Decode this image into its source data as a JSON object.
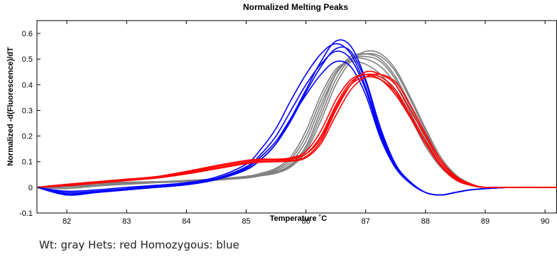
{
  "caption": "Wt:  gray Hets: red Homozygous: blue",
  "chart_data": {
    "type": "line",
    "title": "Normalized Melting Peaks",
    "xlabel": "Temperature ˚C",
    "ylabel": "Normalized -d(Fluorescence)/dT",
    "xlim": [
      81.5,
      90.2
    ],
    "ylim": [
      -0.1,
      0.65
    ],
    "xticks": [
      82,
      83,
      84,
      85,
      86,
      87,
      88,
      89,
      90
    ],
    "yticks": [
      -0.1,
      0,
      0.1,
      0.2,
      0.3,
      0.4,
      0.5,
      0.6
    ],
    "ytick_labels": [
      "-0.1",
      "0",
      "0.1",
      "0.2",
      "0.3",
      "0.4",
      "0.5",
      "0.6"
    ],
    "grid": false,
    "legend": "none",
    "x": [
      81.5,
      82.0,
      82.5,
      83.0,
      83.5,
      84.0,
      84.5,
      85.0,
      85.25,
      85.5,
      85.75,
      86.0,
      86.25,
      86.5,
      86.75,
      87.0,
      87.25,
      87.5,
      87.75,
      88.0,
      88.25,
      88.5,
      88.75,
      89.0,
      89.5,
      90.0,
      90.2
    ],
    "series": [
      {
        "group": "Wt",
        "color": "#808080",
        "values": [
          0.0,
          0.01,
          0.015,
          0.018,
          0.02,
          0.025,
          0.03,
          0.04,
          0.05,
          0.06,
          0.09,
          0.16,
          0.3,
          0.44,
          0.51,
          0.52,
          0.5,
          0.43,
          0.32,
          0.2,
          0.1,
          0.04,
          0.01,
          0.0,
          0.0,
          0.0,
          0.0
        ]
      },
      {
        "group": "Wt",
        "color": "#808080",
        "values": [
          0.0,
          0.005,
          0.01,
          0.015,
          0.02,
          0.025,
          0.03,
          0.04,
          0.05,
          0.07,
          0.11,
          0.2,
          0.34,
          0.45,
          0.5,
          0.5,
          0.47,
          0.4,
          0.29,
          0.18,
          0.09,
          0.03,
          0.01,
          0.0,
          0.0,
          0.0,
          0.0
        ]
      },
      {
        "group": "Wt",
        "color": "#808080",
        "values": [
          0.0,
          -0.005,
          0.005,
          0.012,
          0.018,
          0.022,
          0.028,
          0.036,
          0.045,
          0.055,
          0.08,
          0.14,
          0.26,
          0.4,
          0.49,
          0.53,
          0.52,
          0.46,
          0.35,
          0.23,
          0.12,
          0.05,
          0.015,
          0.0,
          0.0,
          0.0,
          0.0
        ]
      },
      {
        "group": "Wt",
        "color": "#808080",
        "values": [
          0.0,
          0.0,
          0.008,
          0.014,
          0.02,
          0.026,
          0.032,
          0.042,
          0.055,
          0.075,
          0.12,
          0.22,
          0.36,
          0.46,
          0.49,
          0.48,
          0.44,
          0.37,
          0.27,
          0.16,
          0.08,
          0.03,
          0.01,
          0.0,
          0.0,
          0.0,
          0.0
        ]
      },
      {
        "group": "Wt",
        "color": "#808080",
        "values": [
          0.0,
          0.012,
          0.018,
          0.02,
          0.022,
          0.026,
          0.03,
          0.038,
          0.046,
          0.058,
          0.085,
          0.15,
          0.28,
          0.42,
          0.5,
          0.52,
          0.51,
          0.45,
          0.34,
          0.22,
          0.11,
          0.045,
          0.012,
          0.0,
          0.0,
          0.0,
          0.0
        ]
      },
      {
        "group": "Wt",
        "color": "#808080",
        "values": [
          0.0,
          0.004,
          0.01,
          0.016,
          0.021,
          0.027,
          0.033,
          0.043,
          0.052,
          0.065,
          0.1,
          0.18,
          0.32,
          0.44,
          0.5,
          0.51,
          0.49,
          0.42,
          0.31,
          0.19,
          0.1,
          0.04,
          0.01,
          0.0,
          0.0,
          0.0,
          0.0
        ]
      },
      {
        "group": "Hets",
        "color": "#ff0000",
        "values": [
          0.0,
          0.01,
          0.02,
          0.03,
          0.04,
          0.06,
          0.08,
          0.1,
          0.105,
          0.105,
          0.11,
          0.13,
          0.2,
          0.32,
          0.41,
          0.44,
          0.43,
          0.38,
          0.28,
          0.18,
          0.09,
          0.035,
          0.01,
          0.0,
          0.0,
          0.0,
          0.0
        ]
      },
      {
        "group": "Hets",
        "color": "#ff0000",
        "values": [
          0.0,
          0.008,
          0.018,
          0.028,
          0.038,
          0.055,
          0.075,
          0.095,
          0.1,
          0.1,
          0.105,
          0.12,
          0.18,
          0.3,
          0.4,
          0.45,
          0.44,
          0.4,
          0.3,
          0.2,
          0.1,
          0.04,
          0.012,
          0.0,
          0.0,
          0.0,
          0.0
        ]
      },
      {
        "group": "Hets",
        "color": "#ff0000",
        "values": [
          0.0,
          0.012,
          0.022,
          0.032,
          0.042,
          0.062,
          0.085,
          0.105,
          0.11,
          0.11,
          0.115,
          0.14,
          0.22,
          0.34,
          0.42,
          0.44,
          0.42,
          0.36,
          0.27,
          0.17,
          0.085,
          0.03,
          0.008,
          0.0,
          0.0,
          0.0,
          0.0
        ]
      },
      {
        "group": "Hets",
        "color": "#ff0000",
        "values": [
          0.0,
          0.006,
          0.016,
          0.026,
          0.036,
          0.052,
          0.072,
          0.092,
          0.098,
          0.1,
          0.102,
          0.115,
          0.17,
          0.28,
          0.38,
          0.43,
          0.44,
          0.41,
          0.32,
          0.21,
          0.11,
          0.045,
          0.014,
          0.0,
          0.0,
          0.0,
          0.0
        ]
      },
      {
        "group": "Hets",
        "color": "#ff0000",
        "values": [
          0.0,
          0.01,
          0.02,
          0.03,
          0.04,
          0.058,
          0.08,
          0.1,
          0.106,
          0.108,
          0.112,
          0.13,
          0.19,
          0.31,
          0.4,
          0.43,
          0.42,
          0.37,
          0.28,
          0.18,
          0.09,
          0.035,
          0.01,
          0.0,
          0.0,
          0.0,
          0.0
        ]
      },
      {
        "group": "Homozygous",
        "color": "#0000ff",
        "values": [
          0.0,
          -0.03,
          -0.02,
          -0.01,
          0.0,
          0.01,
          0.03,
          0.07,
          0.11,
          0.17,
          0.27,
          0.38,
          0.49,
          0.57,
          0.55,
          0.42,
          0.23,
          0.09,
          0.02,
          -0.02,
          -0.03,
          -0.02,
          -0.01,
          -0.005,
          0.0,
          0.0,
          0.0
        ]
      },
      {
        "group": "Homozygous",
        "color": "#0000ff",
        "values": [
          0.0,
          -0.02,
          -0.015,
          -0.005,
          0.005,
          0.015,
          0.035,
          0.08,
          0.13,
          0.2,
          0.3,
          0.4,
          0.48,
          0.53,
          0.5,
          0.38,
          0.2,
          0.08,
          0.015,
          -0.02,
          -0.03,
          -0.02,
          -0.01,
          -0.005,
          0.0,
          0.0,
          0.0
        ]
      },
      {
        "group": "Homozygous",
        "color": "#0000ff",
        "values": [
          0.0,
          -0.025,
          -0.018,
          -0.008,
          0.002,
          0.012,
          0.032,
          0.075,
          0.12,
          0.18,
          0.27,
          0.36,
          0.44,
          0.49,
          0.47,
          0.36,
          0.19,
          0.075,
          0.015,
          -0.02,
          -0.03,
          -0.02,
          -0.01,
          -0.005,
          0.0,
          0.0,
          0.0
        ]
      },
      {
        "group": "Homozygous",
        "color": "#0000ff",
        "values": [
          0.0,
          -0.015,
          -0.01,
          0.0,
          0.008,
          0.018,
          0.04,
          0.09,
          0.15,
          0.23,
          0.34,
          0.44,
          0.52,
          0.56,
          0.52,
          0.39,
          0.21,
          0.085,
          0.02,
          -0.02,
          -0.03,
          -0.02,
          -0.01,
          -0.005,
          0.0,
          0.0,
          0.0
        ]
      },
      {
        "group": "Homozygous",
        "color": "#0000ff",
        "values": [
          0.0,
          -0.028,
          -0.02,
          -0.01,
          0.0,
          0.01,
          0.03,
          0.068,
          0.11,
          0.17,
          0.26,
          0.37,
          0.47,
          0.54,
          0.53,
          0.41,
          0.22,
          0.088,
          0.02,
          -0.02,
          -0.03,
          -0.02,
          -0.01,
          -0.005,
          0.0,
          0.0,
          0.0
        ]
      }
    ]
  }
}
